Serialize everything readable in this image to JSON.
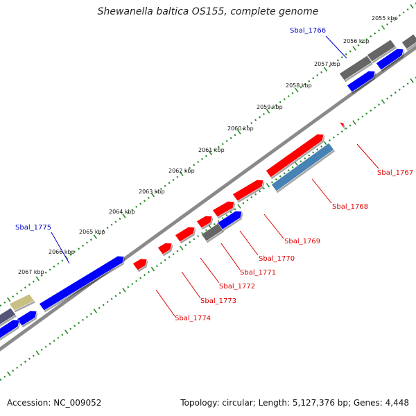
{
  "title": "Shewanella baltica OS155, complete genome",
  "footer": {
    "accession": "Accession: NC_009052",
    "summary": "Topology: circular; Length: 5,127,376 bp; Genes: 4,448"
  },
  "colors": {
    "forward_gene": "#ff0000",
    "reverse_gene": "#0000ff",
    "other_gene": "#666666",
    "highlight_gene": "#4682b4",
    "rna_gene": "#c8c080",
    "backbone": "#888888",
    "ticks": "#228b22"
  },
  "kbp_labels": [
    "2055 kbp",
    "2056 kbp",
    "2057 kbp",
    "2058 kbp",
    "2059 kbp",
    "2060 kbp",
    "2061 kbp",
    "2062 kbp",
    "2063 kbp",
    "2064 kbp",
    "2065 kbp",
    "2066 kbp",
    "2067 kbp"
  ],
  "gene_labels": {
    "Sbal_1766": "Sbal_1766",
    "Sbal_1767": "Sbal_1767",
    "Sbal_1768": "Sbal_1768",
    "Sbal_1769": "Sbal_1769",
    "Sbal_1770": "Sbal_1770",
    "Sbal_1771": "Sbal_1771",
    "Sbal_1772": "Sbal_1772",
    "Sbal_1773": "Sbal_1773",
    "Sbal_1774": "Sbal_1774",
    "Sbal_1775": "Sbal_1775"
  }
}
